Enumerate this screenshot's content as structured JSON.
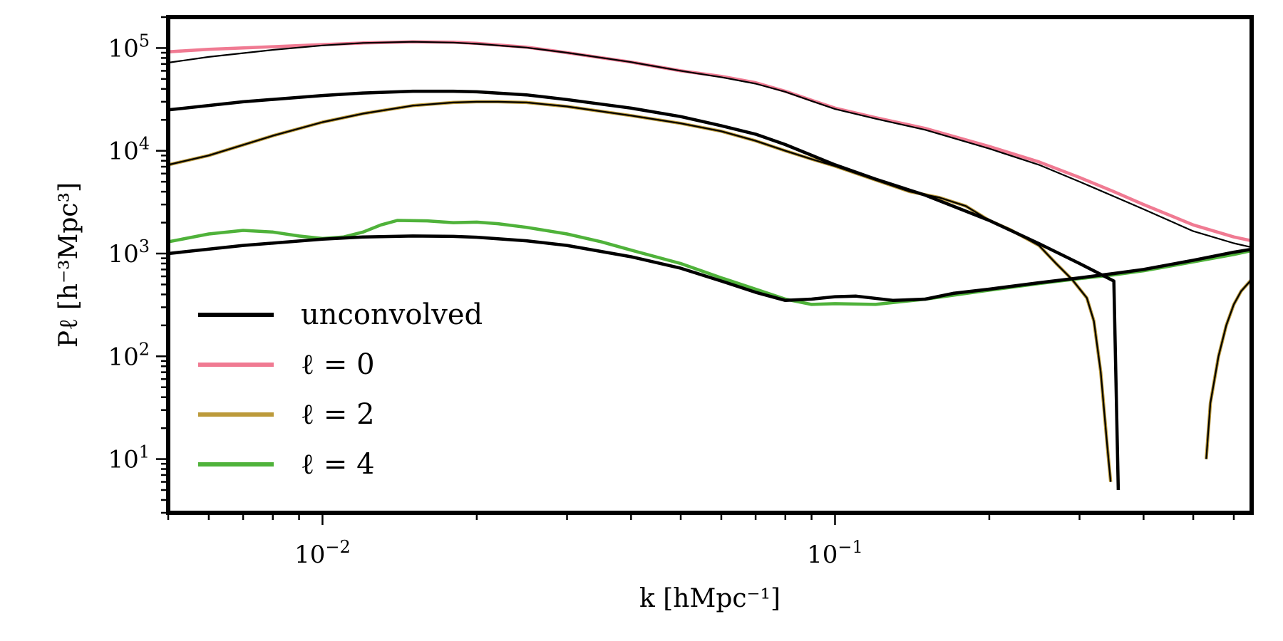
{
  "chart_data": {
    "type": "line",
    "x_scale": "log",
    "y_scale": "log",
    "xlim": [
      0.005,
      0.65
    ],
    "ylim": [
      3,
      200000
    ],
    "xlabel": "k [hMpc⁻¹]",
    "ylabel": "Pℓ [h⁻³Mpc³]",
    "x_ticks": [
      {
        "value": 0.01,
        "base": "10",
        "exp": "−2"
      },
      {
        "value": 0.1,
        "base": "10",
        "exp": "−1"
      }
    ],
    "y_ticks": [
      {
        "value": 10,
        "base": "10",
        "exp": "1"
      },
      {
        "value": 100,
        "base": "10",
        "exp": "2"
      },
      {
        "value": 1000,
        "base": "10",
        "exp": "3"
      },
      {
        "value": 10000,
        "base": "10",
        "exp": "4"
      },
      {
        "value": 100000,
        "base": "10",
        "exp": "5"
      }
    ],
    "grid": false,
    "legend_position": "lower-left",
    "legend": [
      {
        "label": "unconvolved",
        "color": "#000000"
      },
      {
        "label": "ℓ = 0",
        "color": "#f07a92"
      },
      {
        "label": "ℓ = 2",
        "color": "#bc9a3a"
      },
      {
        "label": "ℓ = 4",
        "color": "#4fb23a"
      }
    ],
    "series": [
      {
        "color": "#f07a92",
        "width": 4.5,
        "points": [
          [
            0.005,
            92000
          ],
          [
            0.006,
            97000
          ],
          [
            0.008,
            103000
          ],
          [
            0.01,
            108000
          ],
          [
            0.012,
            112000
          ],
          [
            0.015,
            115000
          ],
          [
            0.018,
            114000
          ],
          [
            0.02,
            111000
          ],
          [
            0.025,
            102000
          ],
          [
            0.03,
            90000
          ],
          [
            0.04,
            73000
          ],
          [
            0.05,
            60000
          ],
          [
            0.06,
            53000
          ],
          [
            0.07,
            46000
          ],
          [
            0.08,
            38000
          ],
          [
            0.09,
            31000
          ],
          [
            0.1,
            26000
          ],
          [
            0.12,
            21000
          ],
          [
            0.15,
            16500
          ],
          [
            0.2,
            11000
          ],
          [
            0.25,
            7800
          ],
          [
            0.3,
            5500
          ],
          [
            0.35,
            4000
          ],
          [
            0.4,
            3000
          ],
          [
            0.5,
            1900
          ],
          [
            0.6,
            1450
          ],
          [
            0.65,
            1330
          ]
        ]
      },
      {
        "color": "#bc9a3a",
        "width": 4.5,
        "points": [
          [
            0.005,
            7300
          ],
          [
            0.006,
            9000
          ],
          [
            0.008,
            14000
          ],
          [
            0.01,
            19000
          ],
          [
            0.012,
            23000
          ],
          [
            0.015,
            27500
          ],
          [
            0.018,
            29500
          ],
          [
            0.02,
            30000
          ],
          [
            0.022,
            30000
          ],
          [
            0.025,
            29500
          ],
          [
            0.03,
            27000
          ],
          [
            0.04,
            22000
          ],
          [
            0.05,
            18500
          ],
          [
            0.06,
            15500
          ],
          [
            0.07,
            12500
          ],
          [
            0.08,
            10000
          ],
          [
            0.09,
            8300
          ],
          [
            0.1,
            7100
          ],
          [
            0.12,
            5200
          ],
          [
            0.14,
            4000
          ],
          [
            0.16,
            3500
          ],
          [
            0.18,
            2900
          ],
          [
            0.2,
            2100
          ],
          [
            0.22,
            1700
          ],
          [
            0.25,
            1200
          ],
          [
            0.27,
            800
          ],
          [
            0.29,
            560
          ],
          [
            0.31,
            370
          ],
          [
            0.32,
            220
          ],
          [
            0.33,
            70
          ],
          [
            0.34,
            13
          ],
          [
            0.345,
            6
          ]
        ]
      },
      {
        "color": "#bc9a3a",
        "width": 4.5,
        "points": [
          [
            0.53,
            10
          ],
          [
            0.54,
            35
          ],
          [
            0.56,
            100
          ],
          [
            0.58,
            200
          ],
          [
            0.6,
            320
          ],
          [
            0.62,
            430
          ],
          [
            0.65,
            560
          ]
        ]
      },
      {
        "color": "#4fb23a",
        "width": 4.5,
        "points": [
          [
            0.005,
            1300
          ],
          [
            0.006,
            1550
          ],
          [
            0.007,
            1680
          ],
          [
            0.008,
            1620
          ],
          [
            0.009,
            1480
          ],
          [
            0.01,
            1400
          ],
          [
            0.011,
            1450
          ],
          [
            0.012,
            1620
          ],
          [
            0.013,
            1900
          ],
          [
            0.014,
            2100
          ],
          [
            0.016,
            2080
          ],
          [
            0.018,
            2000
          ],
          [
            0.02,
            2020
          ],
          [
            0.022,
            1950
          ],
          [
            0.025,
            1800
          ],
          [
            0.03,
            1550
          ],
          [
            0.035,
            1300
          ],
          [
            0.04,
            1080
          ],
          [
            0.05,
            800
          ],
          [
            0.06,
            580
          ],
          [
            0.07,
            450
          ],
          [
            0.08,
            360
          ],
          [
            0.09,
            320
          ],
          [
            0.1,
            325
          ],
          [
            0.12,
            320
          ],
          [
            0.15,
            360
          ],
          [
            0.2,
            440
          ],
          [
            0.25,
            510
          ],
          [
            0.3,
            570
          ],
          [
            0.35,
            620
          ],
          [
            0.4,
            680
          ],
          [
            0.5,
            830
          ],
          [
            0.6,
            980
          ],
          [
            0.65,
            1070
          ]
        ]
      },
      {
        "color": "#000000",
        "width": 2.2,
        "points": [
          [
            0.005,
            72000
          ],
          [
            0.006,
            82000
          ],
          [
            0.008,
            96000
          ],
          [
            0.01,
            106000
          ],
          [
            0.012,
            112000
          ],
          [
            0.015,
            115000
          ],
          [
            0.018,
            113000
          ],
          [
            0.02,
            110000
          ],
          [
            0.025,
            101000
          ],
          [
            0.03,
            90000
          ],
          [
            0.04,
            73000
          ],
          [
            0.05,
            60000
          ],
          [
            0.06,
            52000
          ],
          [
            0.07,
            45000
          ],
          [
            0.08,
            37500
          ],
          [
            0.09,
            30500
          ],
          [
            0.1,
            25500
          ],
          [
            0.12,
            20500
          ],
          [
            0.15,
            16000
          ],
          [
            0.2,
            10500
          ],
          [
            0.25,
            7300
          ],
          [
            0.3,
            5000
          ],
          [
            0.35,
            3600
          ],
          [
            0.4,
            2700
          ],
          [
            0.5,
            1650
          ],
          [
            0.6,
            1260
          ],
          [
            0.65,
            1150
          ]
        ]
      },
      {
        "color": "#000000",
        "width": 2.2,
        "points": [
          [
            0.005,
            7300
          ],
          [
            0.006,
            9000
          ],
          [
            0.008,
            14000
          ],
          [
            0.01,
            19000
          ],
          [
            0.012,
            23000
          ],
          [
            0.015,
            27500
          ],
          [
            0.018,
            29500
          ],
          [
            0.02,
            30000
          ],
          [
            0.022,
            30000
          ],
          [
            0.025,
            29500
          ],
          [
            0.03,
            27000
          ],
          [
            0.04,
            22000
          ],
          [
            0.05,
            18500
          ],
          [
            0.06,
            15500
          ],
          [
            0.07,
            12500
          ],
          [
            0.08,
            10000
          ],
          [
            0.09,
            8300
          ],
          [
            0.1,
            7100
          ],
          [
            0.12,
            5200
          ],
          [
            0.14,
            4000
          ],
          [
            0.16,
            3500
          ],
          [
            0.18,
            2900
          ],
          [
            0.2,
            2100
          ],
          [
            0.22,
            1700
          ],
          [
            0.25,
            1200
          ],
          [
            0.27,
            800
          ],
          [
            0.29,
            560
          ],
          [
            0.31,
            370
          ],
          [
            0.32,
            220
          ],
          [
            0.33,
            70
          ],
          [
            0.34,
            13
          ],
          [
            0.345,
            6
          ]
        ]
      },
      {
        "color": "#000000",
        "width": 2.2,
        "points": [
          [
            0.53,
            10
          ],
          [
            0.54,
            35
          ],
          [
            0.56,
            100
          ],
          [
            0.58,
            200
          ],
          [
            0.6,
            320
          ],
          [
            0.62,
            430
          ],
          [
            0.65,
            560
          ]
        ]
      },
      {
        "color": "#000000",
        "width": 4.5,
        "points": [
          [
            0.005,
            25000
          ],
          [
            0.007,
            30000
          ],
          [
            0.01,
            34500
          ],
          [
            0.012,
            36500
          ],
          [
            0.015,
            38000
          ],
          [
            0.018,
            38000
          ],
          [
            0.02,
            37500
          ],
          [
            0.025,
            35000
          ],
          [
            0.03,
            31500
          ],
          [
            0.04,
            26000
          ],
          [
            0.05,
            21500
          ],
          [
            0.06,
            17500
          ],
          [
            0.07,
            14500
          ],
          [
            0.08,
            11500
          ],
          [
            0.1,
            7300
          ],
          [
            0.12,
            5300
          ],
          [
            0.15,
            3700
          ],
          [
            0.2,
            2100
          ],
          [
            0.25,
            1250
          ],
          [
            0.3,
            800
          ],
          [
            0.35,
            540
          ],
          [
            0.357,
            5
          ]
        ]
      },
      {
        "color": "#000000",
        "width": 4.5,
        "points": [
          [
            0.005,
            1000
          ],
          [
            0.007,
            1200
          ],
          [
            0.01,
            1380
          ],
          [
            0.012,
            1450
          ],
          [
            0.015,
            1480
          ],
          [
            0.018,
            1470
          ],
          [
            0.02,
            1440
          ],
          [
            0.025,
            1330
          ],
          [
            0.03,
            1200
          ],
          [
            0.04,
            930
          ],
          [
            0.05,
            720
          ],
          [
            0.06,
            540
          ],
          [
            0.07,
            420
          ],
          [
            0.08,
            350
          ],
          [
            0.09,
            360
          ],
          [
            0.1,
            380
          ],
          [
            0.11,
            385
          ],
          [
            0.13,
            350
          ],
          [
            0.15,
            360
          ],
          [
            0.17,
            410
          ],
          [
            0.2,
            450
          ],
          [
            0.25,
            520
          ],
          [
            0.3,
            580
          ],
          [
            0.35,
            640
          ],
          [
            0.4,
            700
          ],
          [
            0.5,
            860
          ],
          [
            0.6,
            1030
          ],
          [
            0.65,
            1100
          ]
        ]
      }
    ]
  }
}
